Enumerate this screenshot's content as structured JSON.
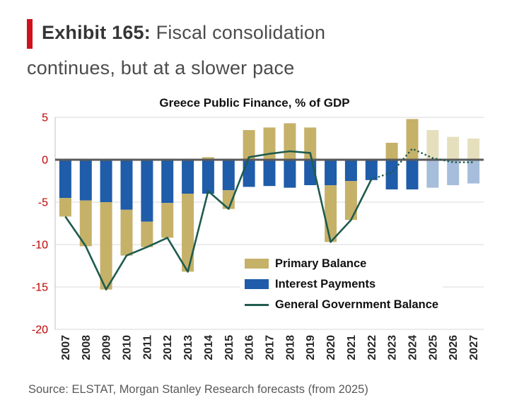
{
  "header": {
    "exhibit_label": "Exhibit 165:",
    "title_rest": "Fiscal consolidation continues, but at a slower pace"
  },
  "chart_data": {
    "type": "bar",
    "title": "Greece Public Finance, % of GDP",
    "categories": [
      2007,
      2008,
      2009,
      2010,
      2011,
      2012,
      2013,
      2014,
      2015,
      2016,
      2017,
      2018,
      2019,
      2020,
      2021,
      2022,
      2023,
      2024,
      2025,
      2026,
      2027
    ],
    "series": [
      {
        "name": "Primary Balance",
        "type": "bar",
        "values": [
          -2.2,
          -5.4,
          -10.3,
          -5.4,
          -3.0,
          -4.1,
          -9.2,
          0.3,
          -2.2,
          3.5,
          3.8,
          4.3,
          3.8,
          -6.7,
          -4.6,
          0.1,
          2.0,
          4.8,
          3.5,
          2.7,
          2.5
        ]
      },
      {
        "name": "Interest Payments",
        "type": "bar",
        "values": [
          -4.5,
          -4.8,
          -5.0,
          -5.9,
          -7.3,
          -5.1,
          -4.0,
          -4.0,
          -3.6,
          -3.2,
          -3.1,
          -3.3,
          -3.0,
          -3.0,
          -2.5,
          -2.4,
          -3.5,
          -3.5,
          -3.3,
          -3.0,
          -2.8
        ]
      },
      {
        "name": "General Government Balance",
        "type": "line",
        "values": [
          -6.7,
          -10.2,
          -15.3,
          -11.3,
          -10.3,
          -9.2,
          -13.2,
          -3.7,
          -5.8,
          0.3,
          0.7,
          1.0,
          0.8,
          -9.7,
          -7.1,
          -2.3,
          -1.5,
          1.3,
          0.2,
          -0.3,
          -0.3
        ]
      }
    ],
    "ylim": [
      -20,
      5
    ],
    "yticks": [
      5,
      0,
      -5,
      -10,
      -15,
      -20
    ],
    "forecast_from": 2025,
    "line_dotted_from_year": 2022,
    "legend_position": "inside-right",
    "grid": true,
    "colors": {
      "primary": "#c6b169",
      "primary_forecast": "#e6dfbd",
      "interest": "#1f5ca9",
      "interest_forecast": "#a6bedb",
      "line": "#1f5b4e",
      "zero_line": "#595959",
      "gridline": "#d9d9d9",
      "axis_label_red": "#c00000",
      "x_label": "#262626",
      "exhibit_marker_red": "#d0111b"
    }
  },
  "legend": {
    "items": [
      {
        "label": "Primary Balance",
        "swatch": "primary"
      },
      {
        "label": "Interest Payments",
        "swatch": "interest"
      },
      {
        "label": "General Government Balance",
        "swatch": "line"
      }
    ]
  },
  "footer": {
    "source": "Source: ELSTAT, Morgan Stanley Research forecasts (from 2025)"
  }
}
